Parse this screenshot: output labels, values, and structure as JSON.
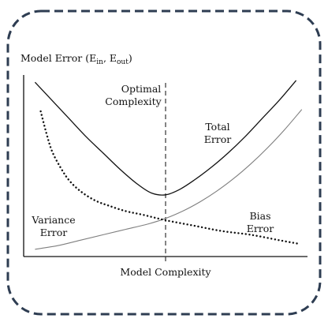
{
  "chart_data": {
    "type": "line",
    "title": "",
    "ylabel_main": "Model Error (E",
    "ylabel_sub_in": "in",
    "ylabel_sep": ", E",
    "ylabel_sub_out": "out",
    "ylabel_close": ")",
    "xlabel": "Model Complexity",
    "annotations": {
      "optimal_line1": "Optimal",
      "optimal_line2": "Complexity",
      "total_line1": "Total",
      "total_line2": "Error",
      "variance_line1": "Variance",
      "variance_line2": "Error",
      "bias_line1": "Bias",
      "bias_line2": "Error"
    },
    "x_range": [
      0,
      1
    ],
    "y_range": [
      0,
      1
    ],
    "optimal_x": 0.5,
    "series": [
      {
        "key": "total",
        "style": "solid-dark",
        "x": [
          0.04,
          0.1,
          0.16,
          0.22,
          0.28,
          0.34,
          0.4,
          0.45,
          0.5,
          0.55,
          0.6,
          0.66,
          0.72,
          0.78,
          0.84,
          0.9,
          0.96
        ],
        "y": [
          0.96,
          0.86,
          0.76,
          0.66,
          0.57,
          0.48,
          0.4,
          0.35,
          0.34,
          0.37,
          0.42,
          0.49,
          0.57,
          0.66,
          0.76,
          0.86,
          0.97
        ]
      },
      {
        "key": "variance",
        "style": "dotted",
        "x": [
          0.06,
          0.08,
          0.1,
          0.13,
          0.16,
          0.2,
          0.25,
          0.3,
          0.36,
          0.42,
          0.5,
          0.6,
          0.7,
          0.8,
          0.9,
          0.97
        ],
        "y": [
          0.8,
          0.68,
          0.58,
          0.49,
          0.42,
          0.36,
          0.31,
          0.28,
          0.25,
          0.23,
          0.2,
          0.17,
          0.14,
          0.12,
          0.09,
          0.07
        ]
      },
      {
        "key": "bias",
        "style": "solid-gray",
        "x": [
          0.04,
          0.12,
          0.2,
          0.28,
          0.36,
          0.44,
          0.5,
          0.56,
          0.62,
          0.68,
          0.74,
          0.8,
          0.86,
          0.92,
          0.98
        ],
        "y": [
          0.04,
          0.06,
          0.09,
          0.12,
          0.15,
          0.18,
          0.21,
          0.25,
          0.3,
          0.36,
          0.43,
          0.51,
          0.6,
          0.7,
          0.81
        ]
      }
    ],
    "colors": {
      "frame": "#2e3d52",
      "total": "#111111",
      "variance": "#111111",
      "bias": "#7f7f7f",
      "axis": "#111111",
      "optimal_line": "#333333"
    }
  }
}
